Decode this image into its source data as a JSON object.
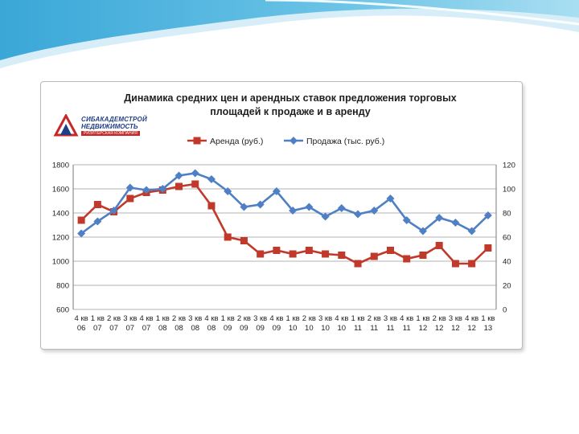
{
  "logo": {
    "line1": "СИБАКАДЕМСТРОЙ",
    "line2": "НЕДВИЖИМОСТЬ",
    "line3": "РИЭЛТЕРСКАЯ КОМПАНИЯ"
  },
  "colors": {
    "rent": "#c0392b",
    "sale": "#4f7fc4",
    "grid": "#9a9a9a",
    "logo_blue": "#1f3f86",
    "logo_red": "#c62828"
  },
  "chart_data": {
    "type": "line",
    "title": "Динамика средних цен и арендных ставок предложения  торговых площадей к продаже и в аренду",
    "legend_position": "top",
    "grid": true,
    "categories": [
      [
        "4 кв",
        "06"
      ],
      [
        "1 кв",
        "07"
      ],
      [
        "2 кв",
        "07"
      ],
      [
        "3 кв",
        "07"
      ],
      [
        "4 кв",
        "07"
      ],
      [
        "1 кв",
        "08"
      ],
      [
        "2 кв",
        "08"
      ],
      [
        "3 кв",
        "08"
      ],
      [
        "4 кв",
        "08"
      ],
      [
        "1 кв",
        "09"
      ],
      [
        "2 кв",
        "09"
      ],
      [
        "3 кв",
        "09"
      ],
      [
        "4 кв",
        "09"
      ],
      [
        "1 кв",
        "10"
      ],
      [
        "2 кв",
        "10"
      ],
      [
        "3 кв",
        "10"
      ],
      [
        "4 кв",
        "10"
      ],
      [
        "1 кв",
        "11"
      ],
      [
        "2 кв",
        "11"
      ],
      [
        "3 кв",
        "11"
      ],
      [
        "4 кв",
        "11"
      ],
      [
        "1 кв",
        "12"
      ],
      [
        "2 кв",
        "12"
      ],
      [
        "3 кв",
        "12"
      ],
      [
        "4 кв",
        "12"
      ],
      [
        "1 кв",
        "13"
      ]
    ],
    "y_left": {
      "min": 600,
      "max": 1800,
      "ticks": [
        "1800",
        "1600",
        "1400",
        "1200",
        "1000",
        "800",
        "600"
      ]
    },
    "y_right": {
      "min": 0,
      "max": 120,
      "ticks": [
        "120",
        "100",
        "80",
        "60",
        "40",
        "20",
        "0"
      ]
    },
    "series": [
      {
        "name": "Аренда (руб.)",
        "axis": "left",
        "marker": "square",
        "color": "#c0392b",
        "values": [
          1340,
          1470,
          1410,
          1520,
          1570,
          1590,
          1620,
          1640,
          1460,
          1200,
          1170,
          1060,
          1090,
          1060,
          1090,
          1060,
          1050,
          980,
          1040,
          1090,
          1020,
          1050,
          1130,
          980,
          980,
          1110
        ]
      },
      {
        "name": "Продажа (тыс. руб.)",
        "axis": "right",
        "marker": "diamond",
        "color": "#4f7fc4",
        "values": [
          63,
          73,
          82,
          101,
          99,
          100,
          111,
          113,
          108,
          98,
          85,
          87,
          98,
          82,
          85,
          77,
          84,
          79,
          82,
          92,
          74,
          65,
          76,
          72,
          65,
          78
        ]
      }
    ]
  }
}
